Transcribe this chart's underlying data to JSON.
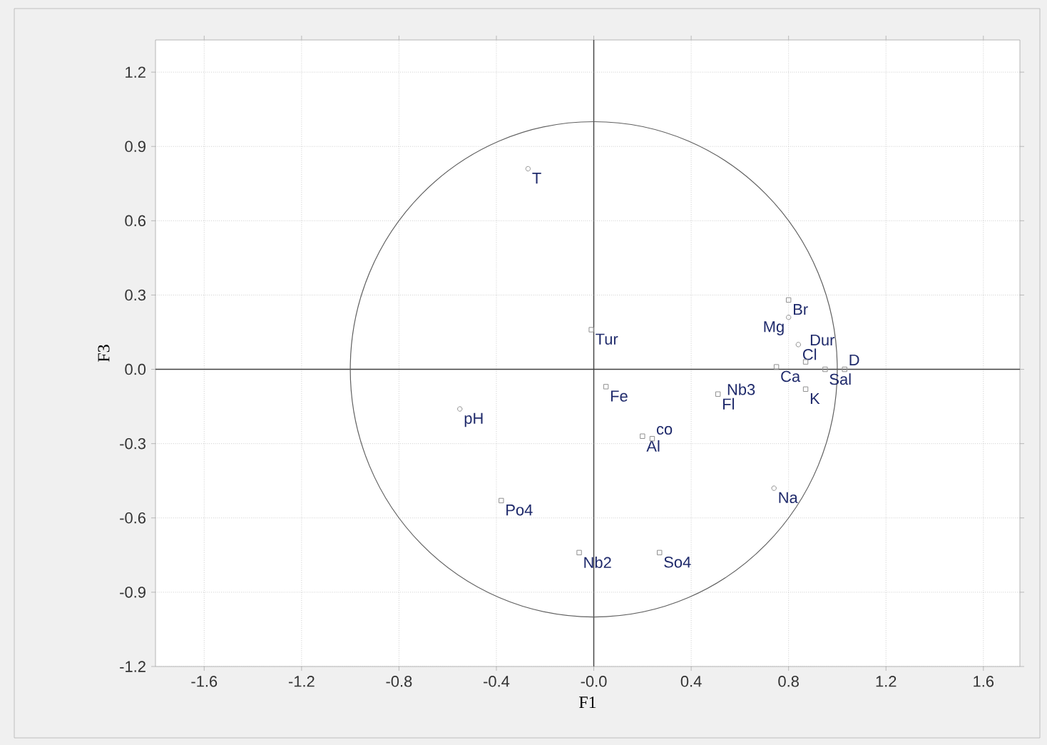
{
  "chart_data": {
    "type": "scatter",
    "xlabel": "F1",
    "ylabel": "F3",
    "xlim": [
      -1.8,
      1.75
    ],
    "ylim": [
      -1.2,
      1.33
    ],
    "xticks": [
      -1.6,
      -1.2,
      -0.8,
      -0.4,
      {
        "value": 0,
        "label": "-0.0"
      },
      0.4,
      0.8,
      1.2,
      1.6
    ],
    "yticks": [
      -1.2,
      -0.9,
      -0.6,
      -0.3,
      {
        "value": 0,
        "label": "0.0"
      },
      0.3,
      0.6,
      0.9,
      1.2
    ],
    "grid": true,
    "series": [
      {
        "marker": "circle",
        "color": "#909090",
        "x": [
          -0.27,
          -0.55,
          0.74,
          0.8,
          0.84
        ],
        "values": [
          0.81,
          -0.16,
          -0.48,
          0.21,
          0.1
        ]
      },
      {
        "marker": "square",
        "color": "#909090",
        "x": [
          -0.01,
          0.05,
          0.2,
          0.24,
          -0.38,
          -0.06,
          0.27,
          0.51,
          0.75,
          0.8,
          0.87,
          0.87,
          0.95,
          1.03
        ],
        "values": [
          0.16,
          -0.07,
          -0.27,
          -0.28,
          -0.53,
          -0.74,
          -0.74,
          -0.1,
          0.01,
          0.28,
          -0.08,
          0.03,
          0.0,
          0.0
        ]
      }
    ],
    "annotations": [
      {
        "text": "T",
        "x": -0.27,
        "y": 0.81
      },
      {
        "text": "pH",
        "x": -0.55,
        "y": -0.16
      },
      {
        "text": "Po4",
        "x": -0.38,
        "y": -0.53
      },
      {
        "text": "Tur",
        "x": -0.01,
        "y": 0.16
      },
      {
        "text": "Fe",
        "x": 0.05,
        "y": -0.07
      },
      {
        "text": "Al",
        "x": 0.2,
        "y": -0.27
      },
      {
        "text": "co",
        "x": 0.24,
        "y": -0.28
      },
      {
        "text": "Nb2",
        "x": -0.06,
        "y": -0.74
      },
      {
        "text": "So4",
        "x": 0.27,
        "y": -0.74
      },
      {
        "text": "Fl",
        "x": 0.51,
        "y": -0.1
      },
      {
        "text": "Nb3",
        "x": 0.53,
        "y": -0.12
      },
      {
        "text": "Na",
        "x": 0.74,
        "y": -0.48
      },
      {
        "text": "Ca",
        "x": 0.75,
        "y": 0.01
      },
      {
        "text": "K",
        "x": 0.87,
        "y": -0.08
      },
      {
        "text": "Br",
        "x": 0.8,
        "y": 0.28
      },
      {
        "text": "Mg",
        "x": 0.8,
        "y": 0.21
      },
      {
        "text": "Cl",
        "x": 0.84,
        "y": 0.1
      },
      {
        "text": "Dur",
        "x": 0.87,
        "y": 0.03
      },
      {
        "text": "Sal",
        "x": 0.95,
        "y": 0.0
      },
      {
        "text": "D",
        "x": 1.03,
        "y": 0.0
      }
    ]
  }
}
